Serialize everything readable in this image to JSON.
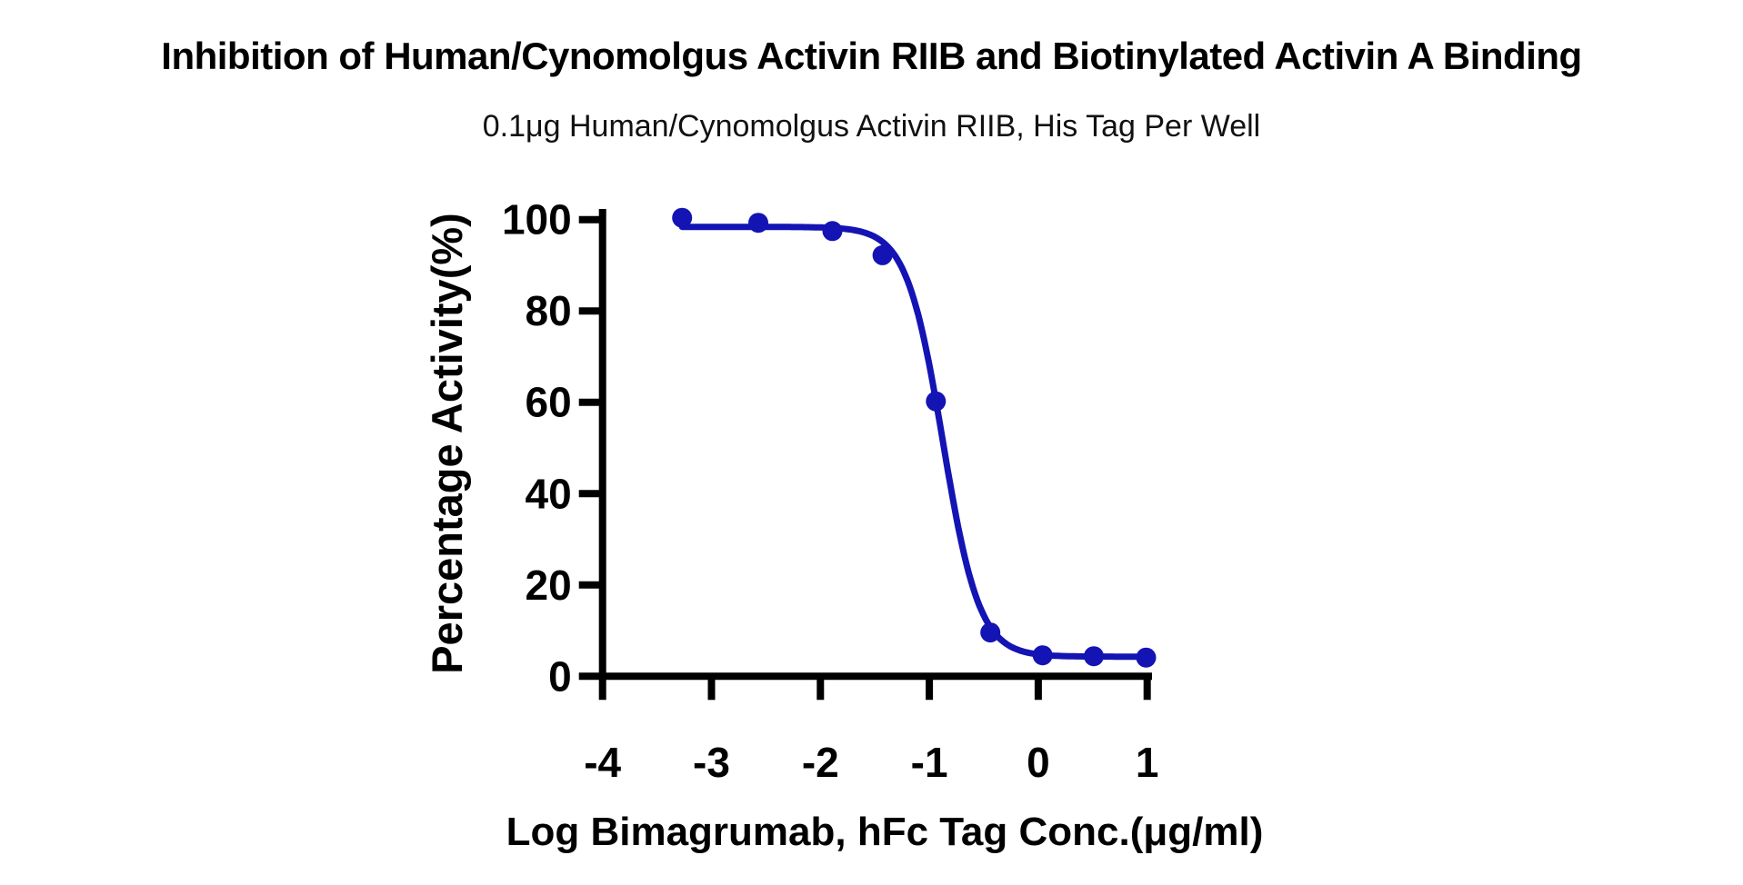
{
  "chart_data": {
    "type": "scatter",
    "title": "Inhibition of Human/Cynomolgus Activin RIIB and Biotinylated Activin A Binding",
    "subtitle": "0.1μg Human/Cynomolgus Activin RIIB, His Tag Per Well",
    "xlabel": "Log Bimagrumab, hFc Tag Conc.(μg/ml)",
    "ylabel": "Percentage Activity(%)",
    "x": [
      -3.27,
      -2.57,
      -1.89,
      -1.43,
      -0.94,
      -0.44,
      0.04,
      0.51,
      0.99
    ],
    "y": [
      100.4,
      99.3,
      97.5,
      92.2,
      60.2,
      9.6,
      4.6,
      4.4,
      4.1
    ],
    "x_ticks": [
      -4,
      -3,
      -2,
      -1,
      0,
      1
    ],
    "y_ticks": [
      0,
      20,
      40,
      60,
      80,
      100
    ],
    "xlim": [
      -4,
      1.05
    ],
    "ylim": [
      0,
      100
    ],
    "grid": false,
    "legend": "none",
    "curve_fit": {
      "model": "4PL sigmoidal (inhibition)",
      "top": 98.4,
      "bottom": 4.3,
      "log_ic50": -0.875,
      "hill_slope": 2.6,
      "x_start": -3.27,
      "x_end": 0.99
    },
    "colors": {
      "series": "#1414b4",
      "axis": "#000000",
      "background": "#ffffff"
    }
  }
}
